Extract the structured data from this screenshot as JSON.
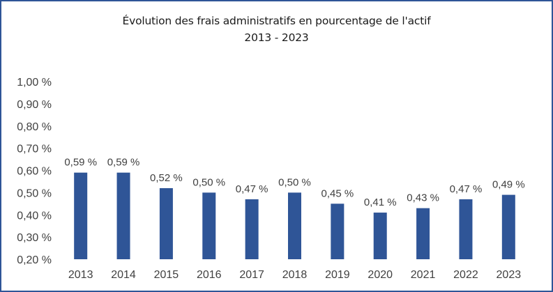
{
  "chart_data": {
    "type": "bar",
    "title": "Évolution des frais administratifs en pourcentage de l'actif",
    "subtitle": "2013 - 2023",
    "categories": [
      "2013",
      "2014",
      "2015",
      "2016",
      "2017",
      "2018",
      "2019",
      "2020",
      "2021",
      "2022",
      "2023"
    ],
    "values": [
      0.59,
      0.59,
      0.52,
      0.5,
      0.47,
      0.5,
      0.45,
      0.41,
      0.43,
      0.47,
      0.49
    ],
    "data_labels": [
      "0,59 %",
      "0,59 %",
      "0,52 %",
      "0,50 %",
      "0,47 %",
      "0,50 %",
      "0,45 %",
      "0,41 %",
      "0,43 %",
      "0,47 %",
      "0,49 %"
    ],
    "ylim": [
      0.2,
      1.0
    ],
    "y_ticks": [
      0.2,
      0.3,
      0.4,
      0.5,
      0.6,
      0.7,
      0.8,
      0.9,
      1.0
    ],
    "y_tick_labels": [
      "0,20 %",
      "0,30 %",
      "0,40 %",
      "0,50 %",
      "0,60 %",
      "0,70 %",
      "0,80 %",
      "0,90 %",
      "1,00 %"
    ],
    "grid": false,
    "bar_color": "#2f5597",
    "border_color": "#2f5597"
  }
}
